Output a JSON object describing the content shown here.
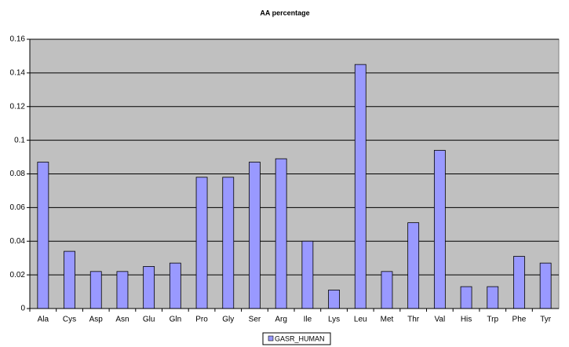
{
  "chart_data": {
    "type": "bar",
    "title": "AA percentage",
    "categories": [
      "Ala",
      "Cys",
      "Asp",
      "Asn",
      "Glu",
      "Gln",
      "Pro",
      "Gly",
      "Ser",
      "Arg",
      "Ile",
      "Lys",
      "Leu",
      "Met",
      "Thr",
      "Val",
      "His",
      "Trp",
      "Phe",
      "Tyr"
    ],
    "series": [
      {
        "name": "GASR_HUMAN",
        "color": "#9999ff",
        "values": [
          0.087,
          0.034,
          0.022,
          0.022,
          0.025,
          0.027,
          0.078,
          0.078,
          0.087,
          0.089,
          0.04,
          0.011,
          0.145,
          0.022,
          0.051,
          0.094,
          0.013,
          0.013,
          0.031,
          0.027
        ]
      }
    ],
    "ylim": [
      0,
      0.16
    ],
    "yticks": [
      0,
      0.02,
      0.04,
      0.06,
      0.08,
      0.1,
      0.12,
      0.14,
      0.16
    ],
    "grid": true,
    "legend": "bottom"
  }
}
